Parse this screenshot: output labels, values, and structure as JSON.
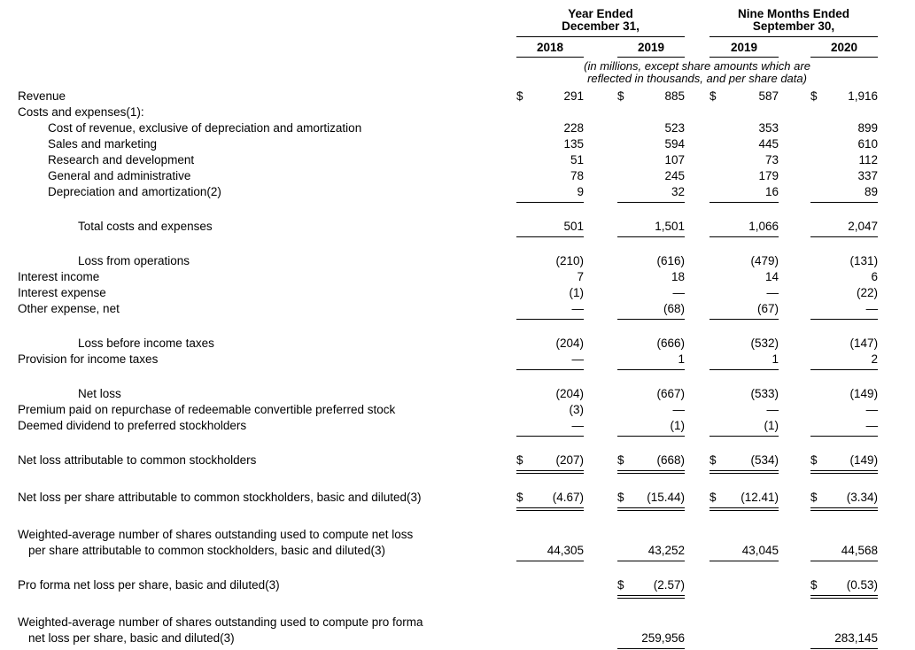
{
  "header": {
    "groups": [
      {
        "line1": "Year Ended",
        "line2": "December 31,",
        "years": [
          "2018",
          "2019"
        ]
      },
      {
        "line1": "Nine Months Ended",
        "line2": "September 30,",
        "years": [
          "2019",
          "2020"
        ]
      }
    ],
    "note_lines": [
      "(in millions, except share amounts which are",
      "reflected in thousands, and per share data)"
    ]
  },
  "table": {
    "currency_symbol": "$",
    "rows": [
      {
        "label": "Revenue",
        "indent": 0,
        "dollar": true,
        "values": [
          "291",
          "885",
          "587",
          "1,916"
        ]
      },
      {
        "label": "Costs and expenses(1):",
        "indent": 0,
        "values": [
          null,
          null,
          null,
          null
        ]
      },
      {
        "label": "Cost of revenue, exclusive of depreciation and amortization",
        "indent": 1,
        "values": [
          "228",
          "523",
          "353",
          "899"
        ]
      },
      {
        "label": "Sales and marketing",
        "indent": 1,
        "values": [
          "135",
          "594",
          "445",
          "610"
        ]
      },
      {
        "label": "Research and development",
        "indent": 1,
        "values": [
          "51",
          "107",
          "73",
          "112"
        ]
      },
      {
        "label": "General and administrative",
        "indent": 1,
        "values": [
          "78",
          "245",
          "179",
          "337"
        ]
      },
      {
        "label": "Depreciation and amortization(2)",
        "indent": 1,
        "values": [
          "9",
          "32",
          "16",
          "89"
        ],
        "rule": "single"
      },
      {
        "label": "Total costs and expenses",
        "indent": 2,
        "values": [
          "501",
          "1,501",
          "1,066",
          "2,047"
        ],
        "rule": "single",
        "gap": true
      },
      {
        "label": "Loss from operations",
        "indent": 2,
        "values": [
          "(210)",
          "(616)",
          "(479)",
          "(131)"
        ],
        "gap": true
      },
      {
        "label": "Interest income",
        "indent": 0,
        "values": [
          "7",
          "18",
          "14",
          "6"
        ]
      },
      {
        "label": "Interest expense",
        "indent": 0,
        "values": [
          "(1)",
          "—",
          "—",
          "(22)"
        ]
      },
      {
        "label": "Other expense, net",
        "indent": 0,
        "values": [
          "—",
          "(68)",
          "(67)",
          "—"
        ],
        "rule": "single"
      },
      {
        "label": "Loss before income taxes",
        "indent": 2,
        "values": [
          "(204)",
          "(666)",
          "(532)",
          "(147)"
        ],
        "gap": true
      },
      {
        "label": "Provision for income taxes",
        "indent": 0,
        "values": [
          "—",
          "1",
          "1",
          "2"
        ],
        "rule": "single"
      },
      {
        "label": "Net loss",
        "indent": 2,
        "values": [
          "(204)",
          "(667)",
          "(533)",
          "(149)"
        ],
        "gap": true
      },
      {
        "label": "Premium paid on repurchase of redeemable convertible preferred stock",
        "indent": 0,
        "values": [
          "(3)",
          "—",
          "—",
          "—"
        ]
      },
      {
        "label": "Deemed dividend to preferred stockholders",
        "indent": 0,
        "values": [
          "—",
          "(1)",
          "(1)",
          "—"
        ],
        "rule": "single"
      },
      {
        "label": "Net loss attributable to common stockholders",
        "indent": 0,
        "dollar": true,
        "values": [
          "(207)",
          "(668)",
          "(534)",
          "(149)"
        ],
        "rule": "double",
        "gap": true
      },
      {
        "label": "Net loss per share attributable to common stockholders, basic and diluted(3)",
        "indent": 0,
        "dollar": true,
        "values": [
          "(4.67)",
          "(15.44)",
          "(12.41)",
          "(3.34)"
        ],
        "rule": "double",
        "gap": true
      },
      {
        "label": "Weighted-average number of shares outstanding used to compute net loss",
        "label2": "per share attributable to common stockholders, basic and diluted(3)",
        "indent": 0,
        "values": [
          "44,305",
          "43,252",
          "43,045",
          "44,568"
        ],
        "rule": "single",
        "gap": true
      },
      {
        "label": "Pro forma net loss per share, basic and diluted(3)",
        "indent": 0,
        "dollar": true,
        "values": [
          null,
          "(2.57)",
          null,
          "(0.53)"
        ],
        "rule": "double",
        "gap": true
      },
      {
        "label": "Weighted-average number of shares outstanding used to compute pro forma",
        "label2": "net loss per share, basic and diluted(3)",
        "indent": 0,
        "values": [
          null,
          "259,956",
          null,
          "283,145"
        ],
        "rule": "single",
        "gap": true
      }
    ]
  }
}
